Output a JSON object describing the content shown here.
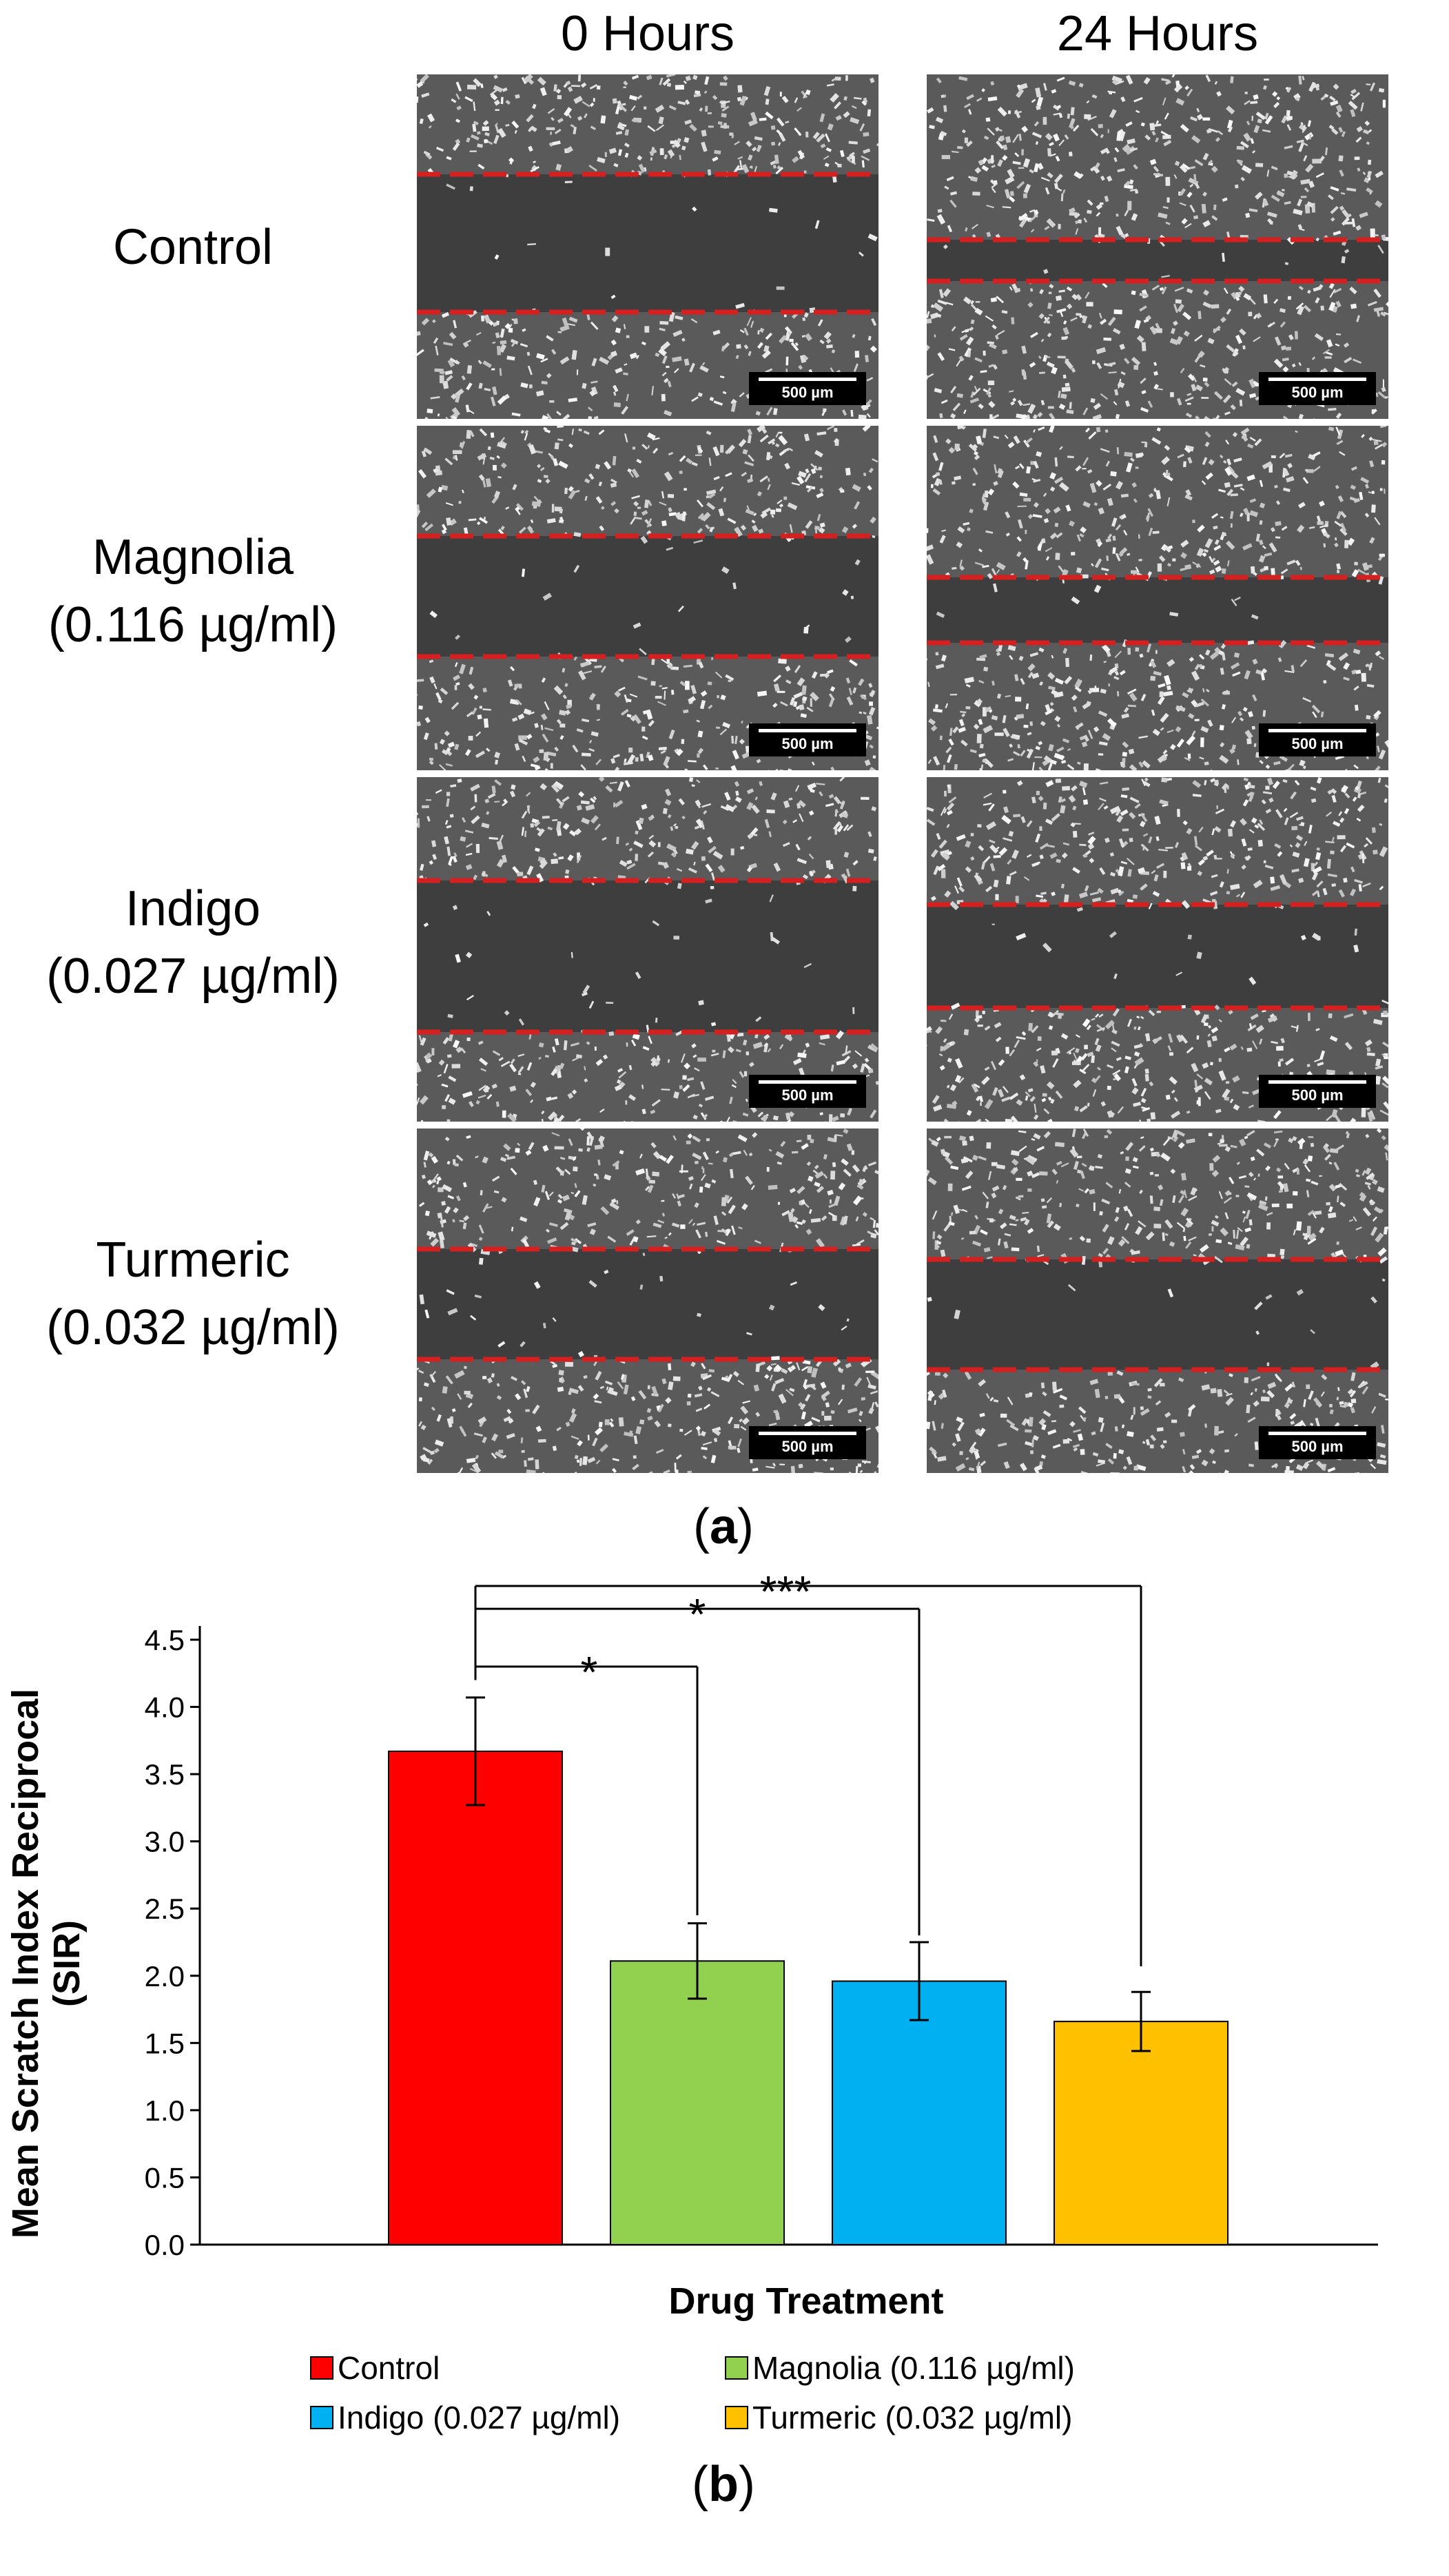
{
  "panel_a": {
    "columns": [
      "0 Hours",
      "24 Hours"
    ],
    "rows": [
      {
        "name": "Control",
        "conc": ""
      },
      {
        "name": "Magnolia",
        "conc": "(0.116 µg/ml)"
      },
      {
        "name": "Indigo",
        "conc": "(0.027 µg/ml)"
      },
      {
        "name": "Turmeric",
        "conc": "(0.032 µg/ml)"
      }
    ],
    "scale_bar": "500 µm",
    "label_open": "(",
    "label_letter": "a",
    "label_close": ")",
    "line_color": "#d61f1f"
  },
  "chart_data": {
    "type": "bar",
    "categories": [
      "Control",
      "Magnolia (0.116 µg/ml)",
      "Indigo (0.027 µg/ml)",
      "Turmeric (0.032 µg/ml)"
    ],
    "values": [
      3.67,
      2.11,
      1.96,
      1.66
    ],
    "errors": [
      0.4,
      0.28,
      0.29,
      0.22
    ],
    "colors": [
      "#ff0000",
      "#92d050",
      "#00b0f0",
      "#ffc000"
    ],
    "ylabel_line1": "Mean Scratch Index Reciprocal",
    "ylabel_line2": "(SIR)",
    "xlabel": "Drug Treatment",
    "ylim": [
      0,
      4.5
    ],
    "yticks": [
      "0.0",
      "0.5",
      "1.0",
      "1.5",
      "2.0",
      "2.5",
      "3.0",
      "3.5",
      "4.0",
      "4.5"
    ],
    "significance": [
      {
        "from": "Control",
        "to": "Magnolia (0.116 µg/ml)",
        "label": "*"
      },
      {
        "from": "Control",
        "to": "Indigo (0.027 µg/ml)",
        "label": "*"
      },
      {
        "from": "Control",
        "to": "Turmeric (0.032 µg/ml)",
        "label": "***"
      }
    ],
    "legend_placement": "bottom",
    "label_open": "(",
    "label_letter": "b",
    "label_close": ")"
  }
}
